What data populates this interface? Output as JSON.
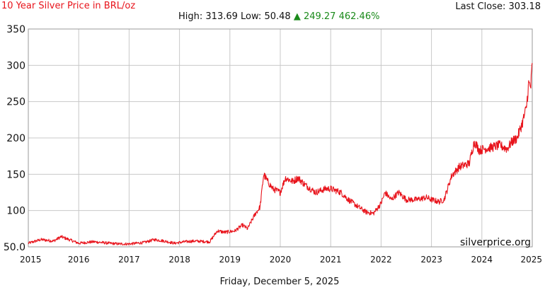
{
  "header": {
    "title": "10 Year Silver Price in BRL/oz",
    "last_close_label": "Last Close:",
    "last_close_value": "303.18",
    "high_label": "High:",
    "high_value": "313.69",
    "low_label": "Low:",
    "low_value": "50.48",
    "change_symbol": "▲",
    "change_value": "249.27",
    "change_percent": "462.46%"
  },
  "watermark": "silverprice.org",
  "footer_date": "Friday, December 5, 2025",
  "colors": {
    "line": "#e8141c",
    "title": "#e8141c",
    "change": "#1a8a1a",
    "grid": "#c8c8c8"
  },
  "chart_data": {
    "type": "line",
    "title": "10 Year Silver Price in BRL/oz",
    "xlabel": "",
    "ylabel": "",
    "xlim": [
      2015,
      2025
    ],
    "ylim": [
      50,
      350
    ],
    "grid": true,
    "x_ticks": [
      "2015",
      "2016",
      "2017",
      "2018",
      "2019",
      "2020",
      "2021",
      "2022",
      "2023",
      "2024",
      "2025"
    ],
    "y_ticks": [
      "350",
      "300",
      "250",
      "200",
      "150",
      "100",
      "50.0"
    ],
    "series": [
      {
        "x": [
          2015.0,
          2015.25,
          2015.5,
          2015.65,
          2015.85,
          2016.0,
          2016.3,
          2016.6,
          2016.8,
          2017.0,
          2017.3,
          2017.5,
          2017.7,
          2017.9,
          2018.1,
          2018.3,
          2018.6,
          2018.75,
          2018.9,
          2019.1,
          2019.25,
          2019.35,
          2019.5,
          2019.6,
          2019.67,
          2019.75,
          2019.85,
          2020.0,
          2020.1,
          2020.25,
          2020.35,
          2020.5,
          2020.7,
          2020.9,
          2021.0,
          2021.2,
          2021.35,
          2021.55,
          2021.7,
          2021.85,
          2022.0,
          2022.08,
          2022.2,
          2022.35,
          2022.5,
          2022.7,
          2022.9,
          2023.0,
          2023.15,
          2023.25,
          2023.4,
          2023.55,
          2023.75,
          2023.85,
          2023.95,
          2024.05,
          2024.2,
          2024.35,
          2024.5,
          2024.6,
          2024.7,
          2024.8,
          2024.88,
          2024.93,
          2024.97,
          2025.0
        ],
        "y": [
          55,
          60,
          58,
          64,
          59,
          55,
          57,
          55,
          54,
          54,
          56,
          60,
          58,
          55,
          57,
          58,
          57,
          72,
          70,
          72,
          80,
          75,
          95,
          105,
          150,
          140,
          130,
          125,
          145,
          140,
          145,
          135,
          125,
          130,
          130,
          125,
          115,
          105,
          98,
          96,
          110,
          125,
          115,
          125,
          115,
          115,
          118,
          115,
          112,
          115,
          148,
          160,
          165,
          195,
          183,
          185,
          187,
          190,
          185,
          195,
          200,
          220,
          240,
          275,
          270,
          303.18
        ],
        "high": 313.69,
        "low": 50.48
      }
    ]
  }
}
